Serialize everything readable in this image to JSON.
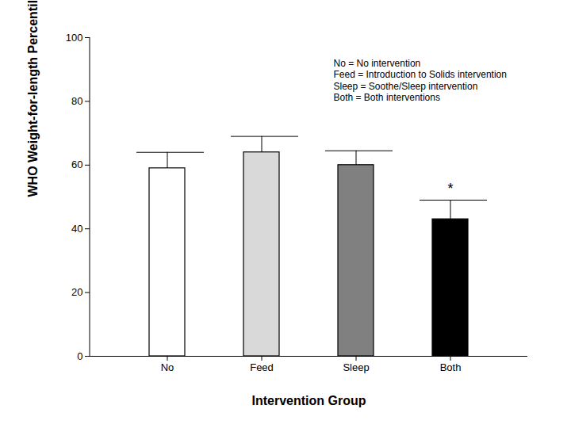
{
  "chart_data": {
    "type": "bar",
    "categories": [
      "No",
      "Feed",
      "Sleep",
      "Both"
    ],
    "values": [
      59,
      64,
      60,
      43
    ],
    "errors": [
      5,
      5,
      4.5,
      6
    ],
    "colors": [
      "#ffffff",
      "#d9d9d9",
      "#808080",
      "#000000"
    ],
    "xlabel": "Intervention Group",
    "ylabel": "WHO Weight-for-length Percentile",
    "ylim": [
      0,
      100
    ],
    "yticks": [
      0,
      20,
      40,
      60,
      80,
      100
    ],
    "annotations": [
      {
        "text": "*",
        "x": "Both"
      }
    ],
    "key_text": [
      "No = No intervention",
      "Feed = Introduction to Solids intervention",
      "Sleep = Soothe/Sleep intervention",
      "Both = Both interventions"
    ]
  }
}
